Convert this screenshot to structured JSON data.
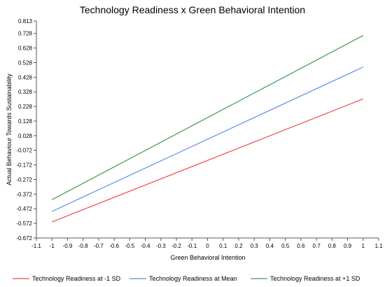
{
  "chart_data": {
    "type": "line",
    "title": "Technology Readiness x Green Behavioral Intention",
    "xlabel": "Green Behavioral Intention",
    "ylabel": "Actual Behaviour Towards Sustainability",
    "x": [
      -1,
      1
    ],
    "xlim": [
      -1.1,
      1.1
    ],
    "ylim": [
      -0.672,
      0.813
    ],
    "x_ticks": [
      "-1.1",
      "-1",
      "-0.9",
      "-0.8",
      "-0.7",
      "-0.6",
      "-0.5",
      "-0.4",
      "-0.3",
      "-0.2",
      "-0.1",
      "0",
      "0.1",
      "0.2",
      "0.3",
      "0.4",
      "0.5",
      "0.6",
      "0.7",
      "0.8",
      "0.9",
      "1",
      "1.1"
    ],
    "y_ticks": [
      "-0.672",
      "-0.572",
      "-0.472",
      "-0.372",
      "-0.272",
      "-0.172",
      "-0.072",
      "0.028",
      "0.128",
      "0.228",
      "0.328",
      "0.428",
      "0.528",
      "0.628",
      "0.728",
      "0.813"
    ],
    "grid": false,
    "legend_position": "bottom",
    "series": [
      {
        "name": "Technology Readiness at -1 SD",
        "color": "#ee4b4b",
        "values": [
          -0.562,
          0.28
        ]
      },
      {
        "name": "Technology Readiness at Mean",
        "color": "#5b8ee6",
        "values": [
          -0.49,
          0.498
        ]
      },
      {
        "name": "Technology Readiness at +1 SD",
        "color": "#3f9a4e",
        "values": [
          -0.41,
          0.714
        ]
      }
    ]
  }
}
